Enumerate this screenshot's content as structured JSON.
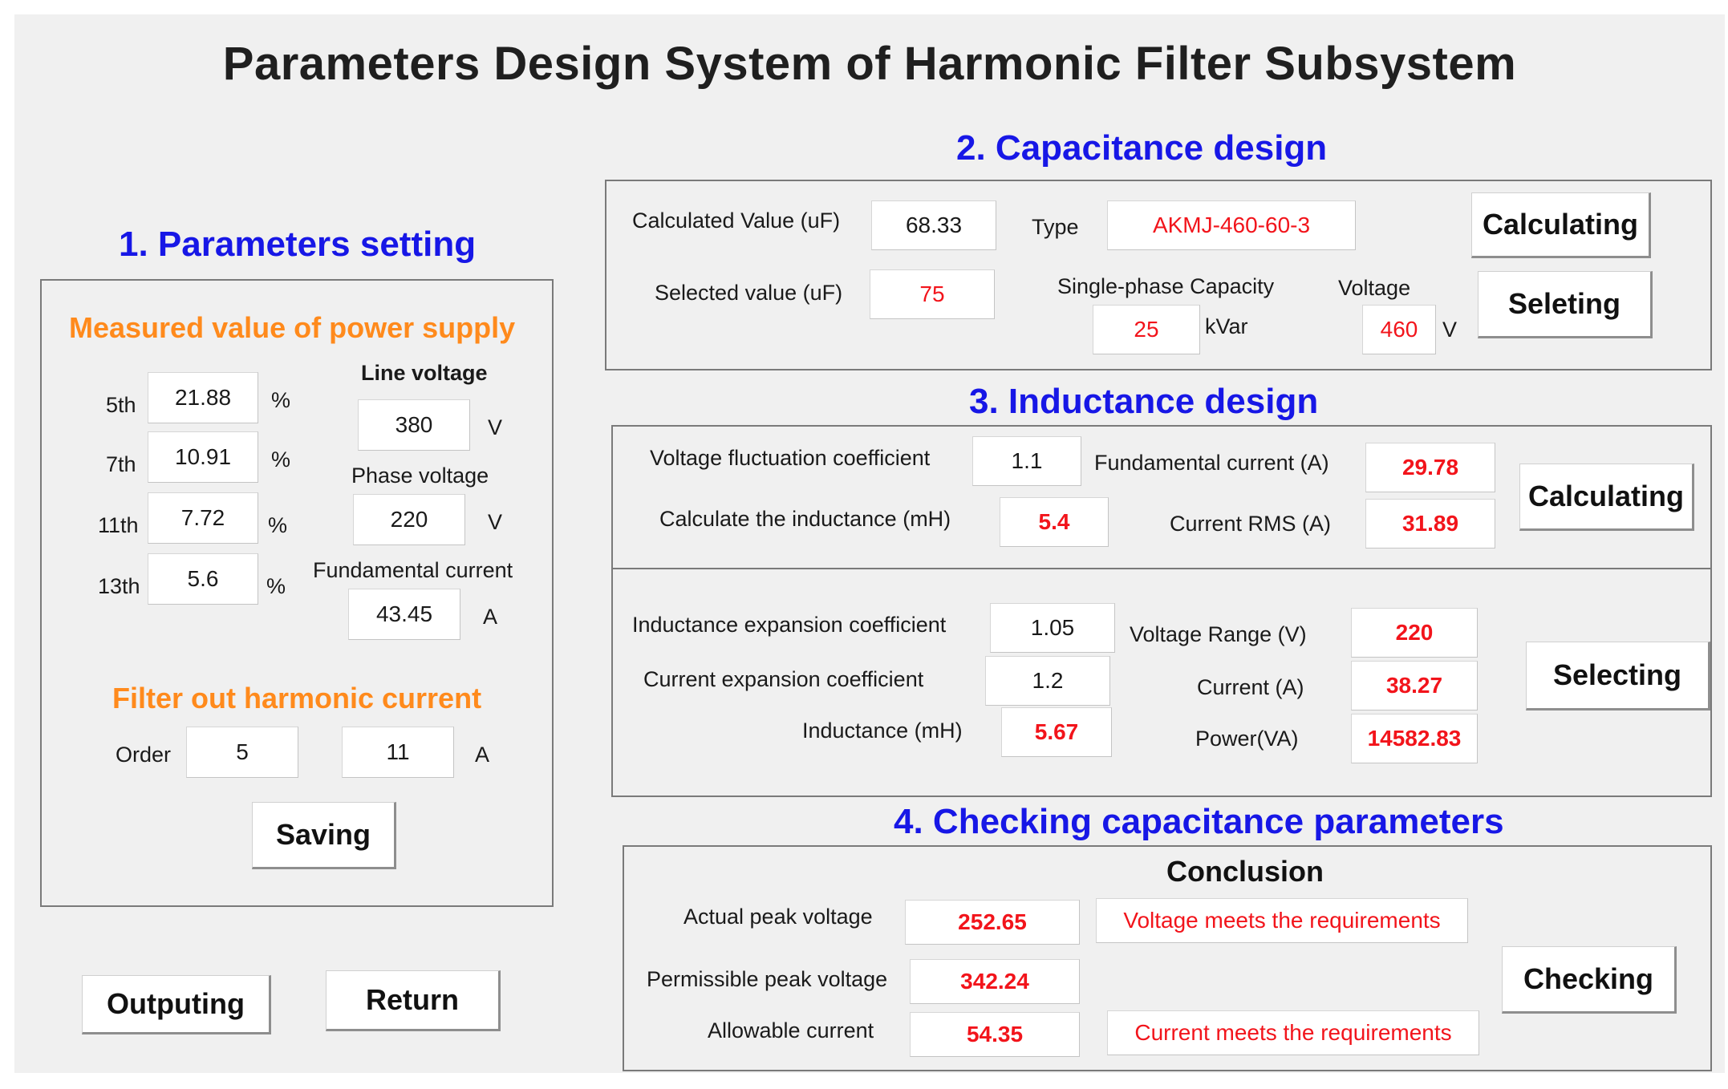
{
  "title": "Parameters Design System of Harmonic Filter Subsystem",
  "params": {
    "section_title": "1. Parameters setting",
    "measured_title": "Measured value of power supply",
    "harmonics": [
      {
        "label": "5th",
        "value": "21.88",
        "unit": "%"
      },
      {
        "label": "7th",
        "value": "10.91",
        "unit": "%"
      },
      {
        "label": "11th",
        "value": "7.72",
        "unit": "%"
      },
      {
        "label": "13th",
        "value": "5.6",
        "unit": "%"
      }
    ],
    "line_voltage": {
      "label": "Line voltage",
      "value": "380",
      "unit": "V"
    },
    "phase_voltage": {
      "label": "Phase voltage",
      "value": "220",
      "unit": "V"
    },
    "fundamental_current": {
      "label": "Fundamental current",
      "value": "43.45",
      "unit": "A"
    },
    "filter_title": "Filter out harmonic current",
    "order_label": "Order",
    "order_value": "5",
    "filter_current": "11",
    "filter_unit": "A",
    "saving_button": "Saving"
  },
  "outputing_button": "Outputing",
  "return_button": "Return",
  "capacitance": {
    "section_title": "2. Capacitance design",
    "calculated_label": "Calculated Value (uF)",
    "calculated_value": "68.33",
    "type_label": "Type",
    "type_value": "AKMJ-460-60-3",
    "selected_label": "Selected value (uF)",
    "selected_value": "75",
    "capacity_label": "Single-phase Capacity",
    "capacity_value": "25",
    "capacity_unit": "kVar",
    "voltage_label": "Voltage",
    "voltage_value": "460",
    "voltage_unit": "V",
    "calculating_button": "Calculating",
    "selecting_button": "Seleting"
  },
  "inductance": {
    "section_title": "3. Inductance design",
    "vfc_label": "Voltage fluctuation coefficient",
    "vfc_value": "1.1",
    "calc_ind_label": "Calculate the inductance (mH)",
    "calc_ind_value": "5.4",
    "fund_current_label": "Fundamental current (A)",
    "fund_current_value": "29.78",
    "rms_label": "Current RMS (A)",
    "rms_value": "31.89",
    "calculating_button": "Calculating",
    "iec_label": "Inductance expansion coefficient",
    "iec_value": "1.05",
    "cec_label": "Current expansion coefficient",
    "cec_value": "1.2",
    "ind_label": "Inductance (mH)",
    "ind_value": "5.67",
    "vr_label": "Voltage Range (V)",
    "vr_value": "220",
    "cur_label": "Current (A)",
    "cur_value": "38.27",
    "pow_label": "Power(VA)",
    "pow_value": "14582.83",
    "selecting_button": "Selecting"
  },
  "checking": {
    "section_title": "4. Checking capacitance parameters",
    "conclusion_label": "Conclusion",
    "actual_label": "Actual peak voltage",
    "actual_value": "252.65",
    "voltage_conclusion": "Voltage meets the requirements",
    "permissible_label": "Permissible peak voltage",
    "permissible_value": "342.24",
    "allowable_label": "Allowable current",
    "allowable_value": "54.35",
    "current_conclusion": "Current meets the requirements",
    "checking_button": "Checking"
  },
  "colors": {
    "section_blue": "#1717e6",
    "orange": "#ff8a1c",
    "value_red": "#f2141b",
    "window_bg": "#f0f0f0"
  }
}
